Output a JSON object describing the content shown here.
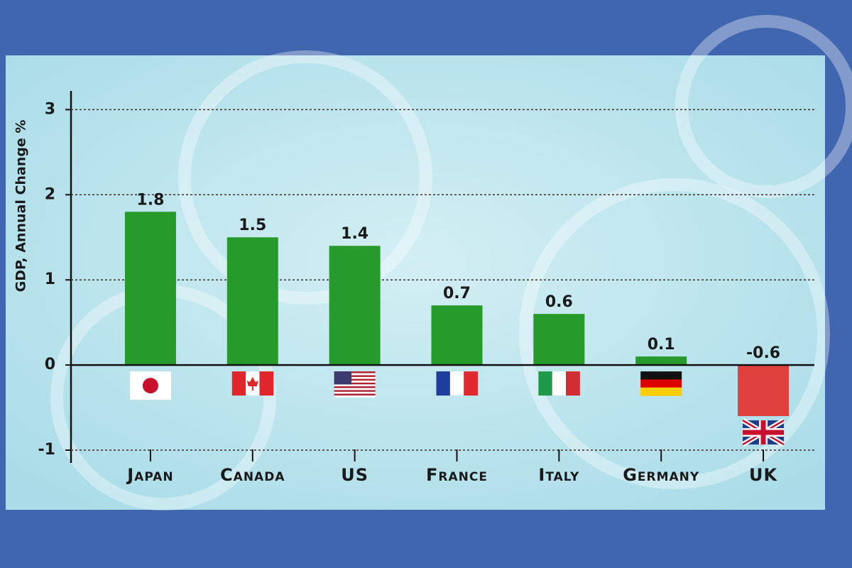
{
  "chart_data": {
    "type": "bar",
    "y_label": "GDP, Annual Change %",
    "categories": [
      "Japan",
      "Canada",
      "US",
      "France",
      "Italy",
      "Germany",
      "UK"
    ],
    "values": [
      1.8,
      1.5,
      1.4,
      0.7,
      0.6,
      0.1,
      -0.6
    ],
    "colors": [
      "#279a2c",
      "#279a2c",
      "#279a2c",
      "#279a2c",
      "#279a2c",
      "#279a2c",
      "#e0403e"
    ],
    "ylim": [
      -1.15,
      3.22
    ],
    "yticks": [
      -1,
      0,
      1,
      2,
      3
    ],
    "grid": true
  }
}
